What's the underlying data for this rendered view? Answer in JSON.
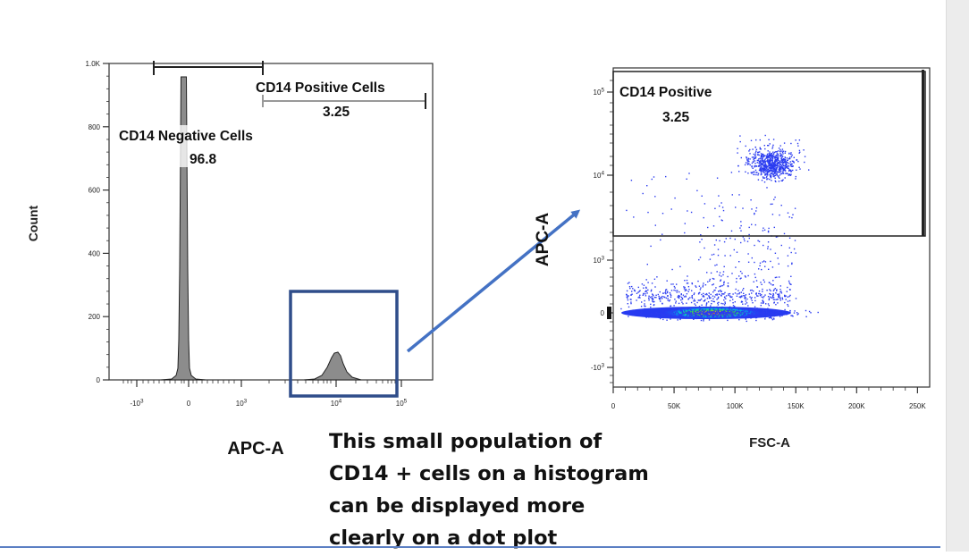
{
  "chart_data": [
    {
      "type": "histogram",
      "xlabel": "APC-A",
      "ylabel": "Count",
      "ylim": [
        0,
        1000
      ],
      "y_ticks": [
        "0",
        "200",
        "400",
        "600",
        "800",
        "1.0K"
      ],
      "x_ticks": [
        "-10^3",
        "0",
        "10^3",
        "10^4",
        "10^5"
      ],
      "peaks": [
        {
          "name": "negative peak",
          "x": 0,
          "height": 960
        },
        {
          "name": "positive peak",
          "x": 10000,
          "height": 75
        }
      ],
      "gates": [
        {
          "name": "CD14 Negative Cells",
          "value": "96.8"
        },
        {
          "name": "CD14 Positive Cells",
          "value": "3.25"
        }
      ]
    },
    {
      "type": "scatter",
      "xlabel": "FSC-A",
      "ylabel": "APC-A",
      "x_ticks": [
        "0",
        "50K",
        "100K",
        "150K",
        "200K",
        "250K"
      ],
      "xlim": [
        0,
        260000
      ],
      "y_ticks": [
        "-10^3",
        "0",
        "10^3",
        "10^4",
        "10^5"
      ],
      "gate": {
        "name": "CD14 Positive",
        "value": "3.25",
        "apc_threshold": 2000
      },
      "populations": [
        {
          "name": "CD14 negative",
          "fsc_center": 85000,
          "apc_center": 0,
          "density": "high"
        },
        {
          "name": "CD14 positive",
          "fsc_center": 130000,
          "apc_center": 15000,
          "density": "medium"
        }
      ]
    }
  ],
  "annotation": {
    "lines": [
      "This small population of",
      "CD14 + cells on a histogram",
      "can be displayed more",
      "clearly on a dot plot"
    ]
  },
  "colors": {
    "highlight_box": "#2f4d8a",
    "arrow": "#4472c4",
    "dots": "#2b3cf0"
  }
}
